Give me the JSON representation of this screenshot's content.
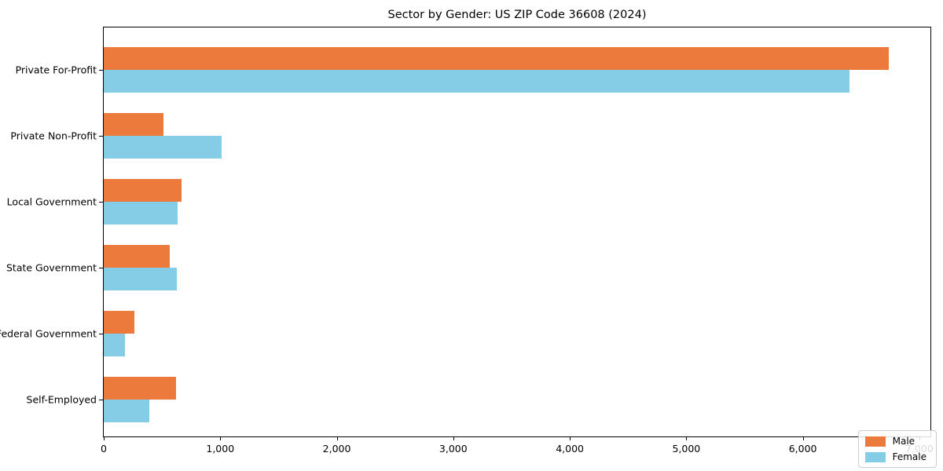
{
  "title": "Sector by Gender: US ZIP Code 36608 (2024)",
  "chart_data": {
    "type": "bar",
    "orientation": "horizontal",
    "title": "Sector by Gender: US ZIP Code 36608 (2024)",
    "categories": [
      "Private For-Profit",
      "Private Non-Profit",
      "Local Government",
      "State Government",
      "Federal Government",
      "Self-Employed"
    ],
    "series": [
      {
        "name": "Male",
        "color": "#EB7A3C",
        "values": [
          6740,
          510,
          670,
          565,
          260,
          620
        ]
      },
      {
        "name": "Female",
        "color": "#85CDE7",
        "values": [
          6400,
          1010,
          635,
          625,
          180,
          390
        ]
      }
    ],
    "xlabel": "",
    "ylabel": "",
    "xlim": [
      0,
      7095
    ],
    "xtick_values": [
      0,
      1000,
      2000,
      3000,
      4000,
      5000,
      6000,
      7000
    ],
    "xtick_labels": [
      "0",
      "1,000",
      "2,000",
      "3,000",
      "4,000",
      "5,000",
      "6,000",
      "7,000"
    ],
    "grid": false,
    "legend": {
      "position": "lower right",
      "labels": [
        "Male",
        "Female"
      ]
    }
  }
}
